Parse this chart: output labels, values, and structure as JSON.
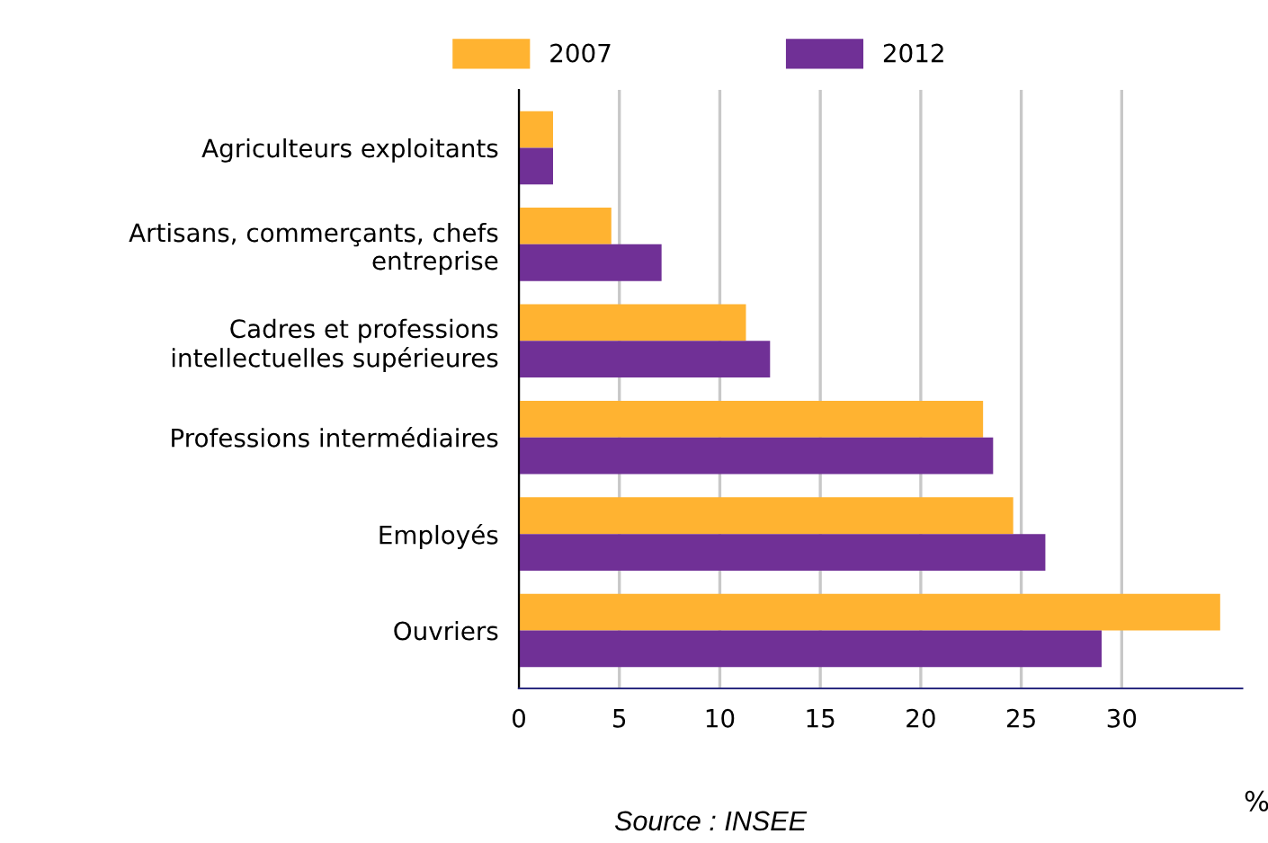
{
  "chart_data": {
    "type": "bar",
    "orientation": "horizontal",
    "xlabel": "%",
    "categories": [
      "Agriculteurs exploitants",
      "Artisans, commerçants, chefs\nentreprise",
      "Cadres et professions\nintellectuelles supérieures",
      "Professions intermédiaires",
      "Employés",
      "Ouvriers"
    ],
    "series": [
      {
        "name": "2007",
        "color": "#ffb331",
        "values": [
          1.7,
          4.6,
          11.3,
          23.1,
          24.6,
          34.9
        ]
      },
      {
        "name": "2012",
        "color": "#703096",
        "values": [
          1.7,
          7.1,
          12.5,
          23.6,
          26.2,
          29.0
        ]
      }
    ],
    "xlim": [
      0,
      36
    ],
    "xticks": [
      0,
      5,
      10,
      15,
      20,
      25,
      30
    ],
    "grid": "x",
    "legend": "top",
    "annotations": [
      "Source : INSEE"
    ]
  }
}
